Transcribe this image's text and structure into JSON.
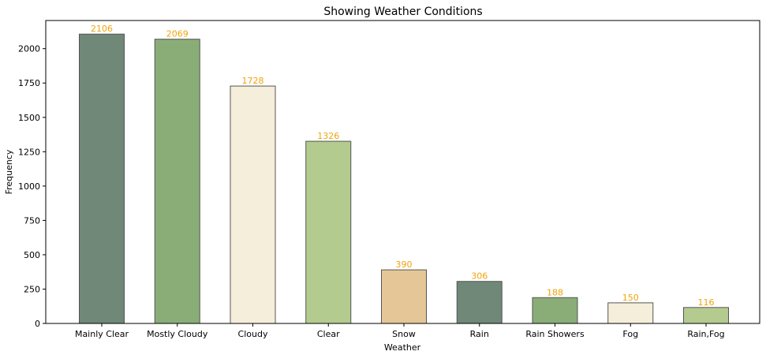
{
  "chart_data": {
    "type": "bar",
    "title": "Showing Weather Conditions",
    "xlabel": "Weather",
    "ylabel": "Frequency",
    "categories": [
      "Mainly Clear",
      "Mostly Cloudy",
      "Cloudy",
      "Clear",
      "Snow",
      "Rain",
      "Rain Showers",
      "Fog",
      "Rain,Fog"
    ],
    "values": [
      2106,
      2069,
      1728,
      1326,
      390,
      306,
      188,
      150,
      116
    ],
    "value_labels": [
      "2106",
      "2069",
      "1728",
      "1326",
      "390",
      "306",
      "188",
      "150",
      "116"
    ],
    "ylim": [
      0,
      2205
    ],
    "yticks": [
      0,
      250,
      500,
      750,
      1000,
      1250,
      1500,
      1750,
      2000
    ],
    "ytick_labels": [
      "0",
      "250",
      "500",
      "750",
      "1000",
      "1250",
      "1500",
      "1750",
      "2000"
    ],
    "bar_colors": [
      "#6f8878",
      "#8aad78",
      "#f5eedb",
      "#b4cb8f",
      "#e5c697",
      "#6f8878",
      "#8aad78",
      "#f5eedb",
      "#b4cb8f"
    ],
    "bar_edge_color": "#555555",
    "value_label_color": "#f0a30a",
    "grid": false,
    "legend": "none"
  }
}
